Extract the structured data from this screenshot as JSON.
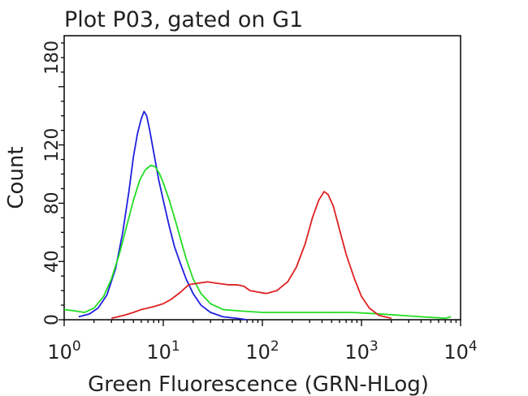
{
  "chart_data": {
    "type": "line",
    "title": "Plot P03, gated on G1",
    "xlabel": "Green Fluorescence (GRN-HLog)",
    "ylabel": "Count",
    "x_scale": "log",
    "xlim": [
      1,
      10000
    ],
    "ylim": [
      0,
      195
    ],
    "x_ticks": [
      {
        "value": 1,
        "base": "10",
        "exp": "0"
      },
      {
        "value": 10,
        "base": "10",
        "exp": "1"
      },
      {
        "value": 100,
        "base": "10",
        "exp": "2"
      },
      {
        "value": 1000,
        "base": "10",
        "exp": "3"
      },
      {
        "value": 10000,
        "base": "10",
        "exp": "4"
      }
    ],
    "y_ticks": [
      0,
      40,
      80,
      120,
      180
    ],
    "grid": false,
    "legend": "none",
    "series": [
      {
        "color": "#1f1fe0",
        "points": [
          [
            1.4,
            2
          ],
          [
            1.8,
            4
          ],
          [
            2.2,
            8
          ],
          [
            2.7,
            17
          ],
          [
            3.3,
            35
          ],
          [
            3.9,
            60
          ],
          [
            4.5,
            88
          ],
          [
            5.0,
            112
          ],
          [
            5.5,
            128
          ],
          [
            6.0,
            138
          ],
          [
            6.4,
            143
          ],
          [
            6.8,
            140
          ],
          [
            7.3,
            130
          ],
          [
            8.0,
            115
          ],
          [
            9.0,
            96
          ],
          [
            10,
            82
          ],
          [
            11.5,
            64
          ],
          [
            13,
            50
          ],
          [
            15,
            38
          ],
          [
            17,
            28
          ],
          [
            20,
            18
          ],
          [
            24,
            10
          ],
          [
            30,
            5
          ],
          [
            40,
            2
          ],
          [
            55,
            1
          ],
          [
            70,
            0
          ]
        ]
      },
      {
        "color": "#22dd22",
        "points": [
          [
            1.0,
            7
          ],
          [
            1.3,
            6
          ],
          [
            1.6,
            5
          ],
          [
            2.0,
            8
          ],
          [
            2.5,
            16
          ],
          [
            3.0,
            28
          ],
          [
            3.6,
            45
          ],
          [
            4.3,
            65
          ],
          [
            5.0,
            82
          ],
          [
            5.8,
            96
          ],
          [
            6.6,
            103
          ],
          [
            7.5,
            106
          ],
          [
            8.3,
            105
          ],
          [
            9.2,
            100
          ],
          [
            10,
            94
          ],
          [
            11.5,
            82
          ],
          [
            13,
            70
          ],
          [
            15,
            55
          ],
          [
            17,
            42
          ],
          [
            20,
            28
          ],
          [
            24,
            18
          ],
          [
            30,
            11
          ],
          [
            40,
            7
          ],
          [
            60,
            6
          ],
          [
            100,
            5
          ],
          [
            300,
            5
          ],
          [
            800,
            5
          ],
          [
            1500,
            4
          ],
          [
            2500,
            3
          ],
          [
            4000,
            2
          ],
          [
            7000,
            1
          ],
          [
            8000,
            2
          ]
        ]
      },
      {
        "color": "#e02020",
        "points": [
          [
            3,
            1
          ],
          [
            4,
            3
          ],
          [
            5,
            5
          ],
          [
            6,
            7
          ],
          [
            8,
            9
          ],
          [
            10,
            11
          ],
          [
            12,
            14
          ],
          [
            15,
            19
          ],
          [
            18,
            24
          ],
          [
            22,
            25
          ],
          [
            28,
            26
          ],
          [
            35,
            25
          ],
          [
            45,
            24
          ],
          [
            55,
            24
          ],
          [
            65,
            23
          ],
          [
            75,
            20
          ],
          [
            90,
            19
          ],
          [
            110,
            18
          ],
          [
            140,
            20
          ],
          [
            180,
            26
          ],
          [
            220,
            36
          ],
          [
            270,
            52
          ],
          [
            320,
            70
          ],
          [
            370,
            82
          ],
          [
            420,
            88
          ],
          [
            460,
            86
          ],
          [
            520,
            78
          ],
          [
            600,
            62
          ],
          [
            700,
            45
          ],
          [
            850,
            28
          ],
          [
            1000,
            16
          ],
          [
            1200,
            8
          ],
          [
            1500,
            3
          ],
          [
            2000,
            1
          ]
        ]
      }
    ]
  }
}
